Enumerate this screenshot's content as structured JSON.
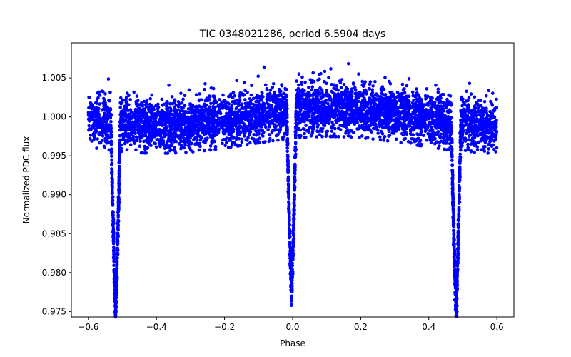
{
  "chart_data": {
    "type": "scatter",
    "title": "TIC 0348021286, period 6.5904 days",
    "xlabel": "Phase",
    "ylabel": "Normalized PDC flux",
    "xlim": [
      -0.65,
      0.65
    ],
    "ylim": [
      0.9743,
      1.0095
    ],
    "x_ticks": [
      -0.6,
      -0.4,
      -0.2,
      0.0,
      0.2,
      0.4,
      0.6
    ],
    "x_tick_labels": [
      "−0.6",
      "−0.4",
      "−0.2",
      "0.0",
      "0.2",
      "0.4",
      "0.6"
    ],
    "y_ticks": [
      0.975,
      0.98,
      0.985,
      0.99,
      0.995,
      1.0,
      1.005
    ],
    "y_tick_labels": [
      "0.975",
      "0.980",
      "0.985",
      "0.990",
      "0.995",
      "1.000",
      "1.005"
    ],
    "grid": false,
    "legend": "none",
    "marker_color": "#0000ff",
    "phase_range": [
      -0.6,
      0.6
    ],
    "period_days": 6.5904,
    "baseline_flux": 1.0,
    "scatter_sigma": 0.0016,
    "eclipses": [
      {
        "center_phase": -0.52,
        "min_flux": 0.9757,
        "half_width_phase": 0.014
      },
      {
        "center_phase": -0.0032,
        "min_flux": 0.9765,
        "half_width_phase": 0.014
      },
      {
        "center_phase": 0.48,
        "min_flux": 0.9757,
        "half_width_phase": 0.014
      }
    ],
    "point_count": 5000
  }
}
